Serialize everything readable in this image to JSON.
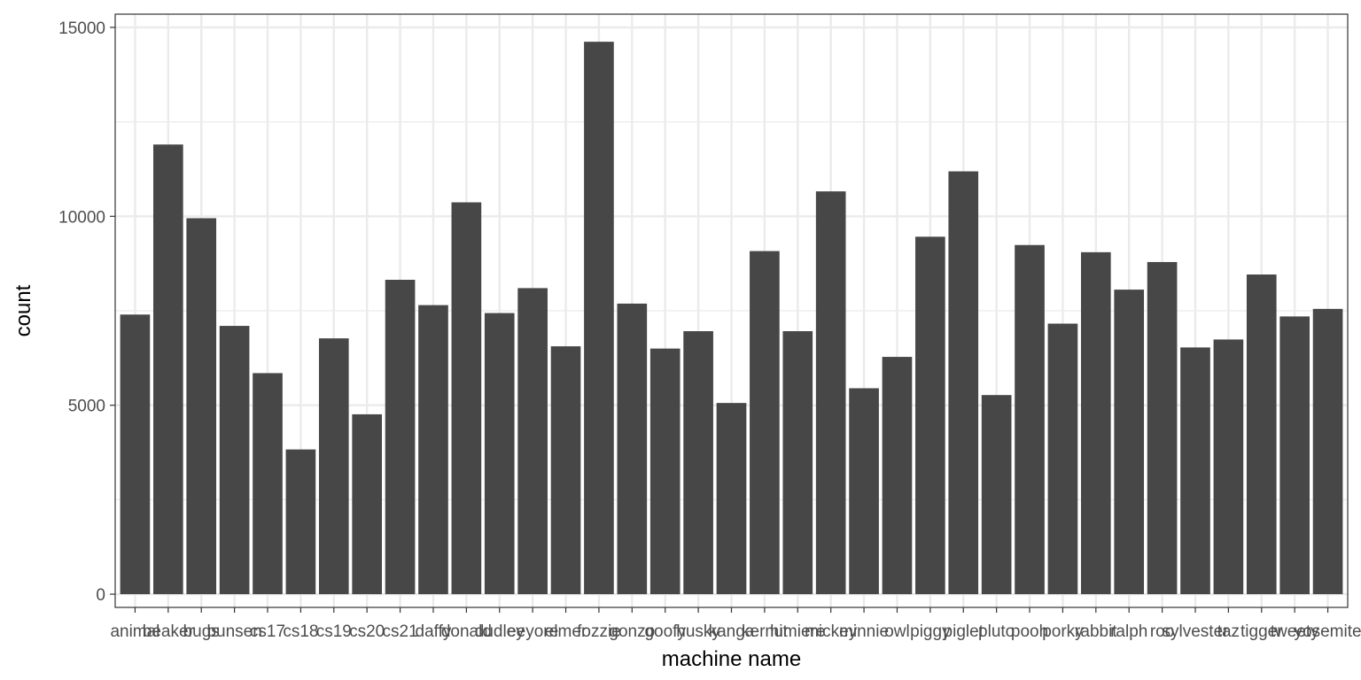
{
  "chart_data": {
    "type": "bar",
    "title": "",
    "xlabel": "machine name",
    "ylabel": "count",
    "ylim": [
      -350,
      15350
    ],
    "yticks": [
      0,
      5000,
      10000,
      15000
    ],
    "grid": true,
    "legend": "none",
    "colors": {
      "bar": "#474747",
      "grid": "#ebebeb",
      "panel_border": "#333333",
      "background": "#ffffff"
    },
    "categories": [
      "animal",
      "beaker",
      "bugs",
      "bunsen",
      "cs17",
      "cs18",
      "cs19",
      "cs20",
      "cs21",
      "daffy",
      "donald",
      "dudley",
      "eeyore",
      "elmer",
      "fozzie",
      "gonzo",
      "goofy",
      "husky",
      "kanga",
      "kermit",
      "lumiere",
      "mickey",
      "minnie",
      "owl",
      "piggy",
      "piglet",
      "pluto",
      "pooh",
      "porky",
      "rabbit",
      "ralph",
      "roo",
      "sylvester",
      "taz",
      "tigger",
      "tweety",
      "yosemite"
    ],
    "values": [
      7400,
      11900,
      9950,
      7100,
      5850,
      3830,
      6770,
      4760,
      8320,
      7650,
      10370,
      7440,
      8100,
      6560,
      14620,
      7690,
      6500,
      6960,
      5060,
      9080,
      6960,
      10660,
      5450,
      6280,
      9460,
      11190,
      5270,
      9240,
      7160,
      9050,
      8060,
      8790,
      6530,
      6740,
      8460,
      7350,
      7550
    ]
  }
}
